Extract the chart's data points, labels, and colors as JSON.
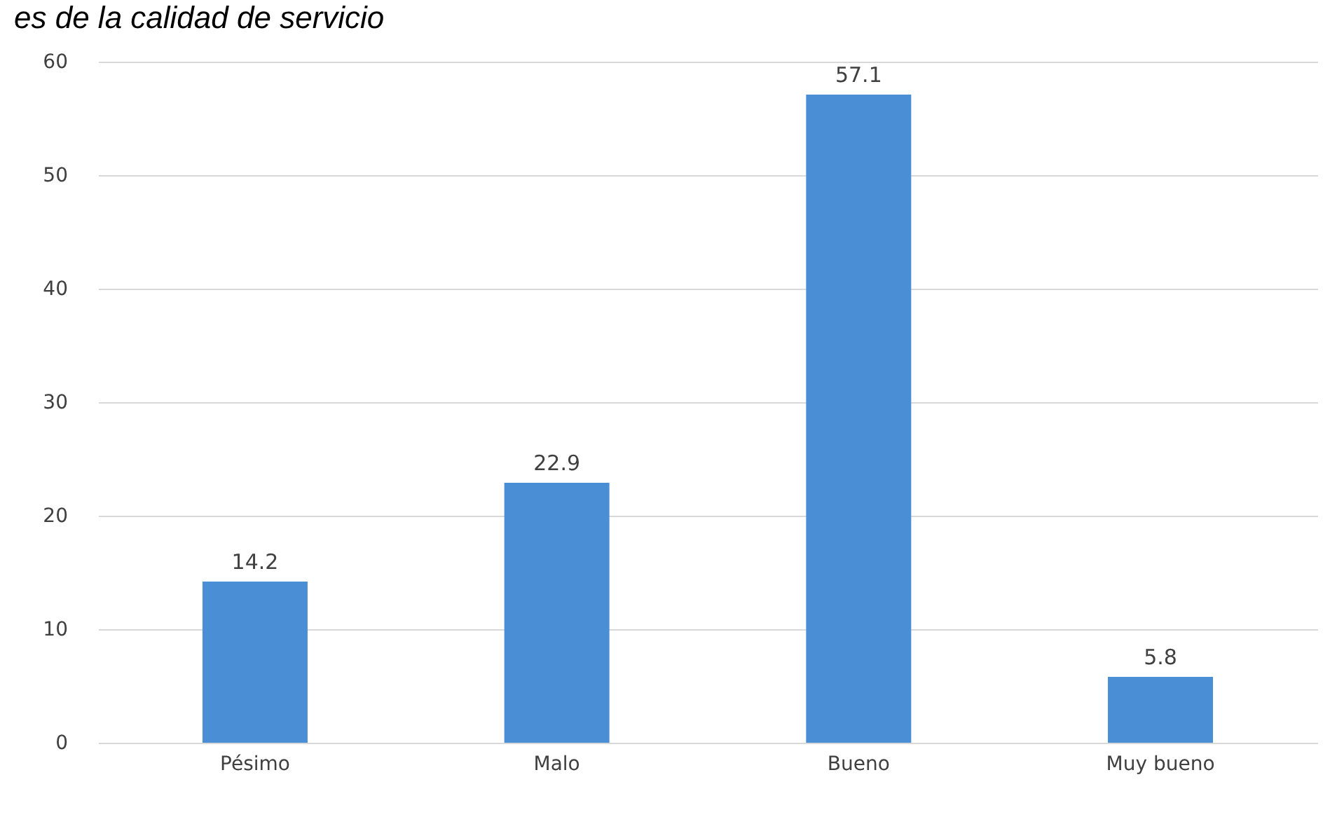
{
  "chart_data": {
    "type": "bar",
    "title": "es de la calidad  de servicio",
    "categories": [
      "Pésimo",
      "Malo",
      "Bueno",
      "Muy bueno"
    ],
    "values": [
      14.2,
      22.9,
      57.1,
      5.8
    ],
    "color": "#4a8fd6",
    "ylim": [
      0,
      60
    ],
    "yticks": [
      0,
      10,
      20,
      30,
      40,
      50,
      60
    ],
    "grid": "y",
    "data_labels": true
  }
}
